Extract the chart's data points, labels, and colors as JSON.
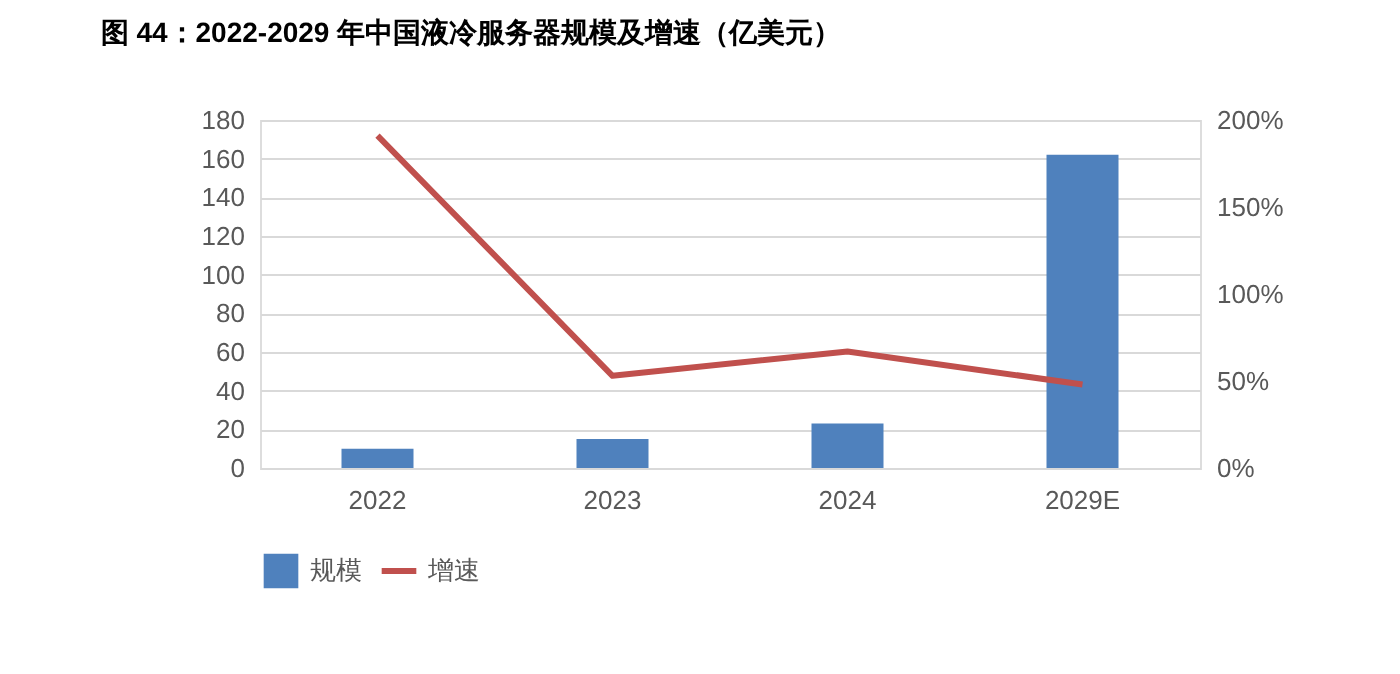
{
  "chart_data": {
    "type": "bar",
    "title": "图 44：2022-2029 年中国液冷服务器规模及增速（亿美元）",
    "categories": [
      "2022",
      "2023",
      "2024",
      "2029E"
    ],
    "series": [
      {
        "name": "规模",
        "color": "#4f81bd",
        "values": [
          10,
          15,
          23,
          162
        ]
      },
      {
        "name": "增速",
        "type": "line",
        "axis": "y2",
        "color": "#c0504d",
        "values": [
          191,
          53,
          67,
          48
        ]
      }
    ],
    "ylim": [
      0,
      180
    ],
    "yticks": [
      0,
      20,
      40,
      60,
      80,
      100,
      120,
      140,
      160,
      180
    ],
    "y2lim": [
      0,
      200
    ],
    "y2ticks": [
      {
        "value": 0,
        "label": "0%"
      },
      {
        "value": 50,
        "label": "50%"
      },
      {
        "value": 100,
        "label": "100%"
      },
      {
        "value": 150,
        "label": "150%"
      },
      {
        "value": 200,
        "label": "200%"
      }
    ],
    "grid": "y",
    "legend": "bottom",
    "marker": "none",
    "line_style": "solid"
  }
}
